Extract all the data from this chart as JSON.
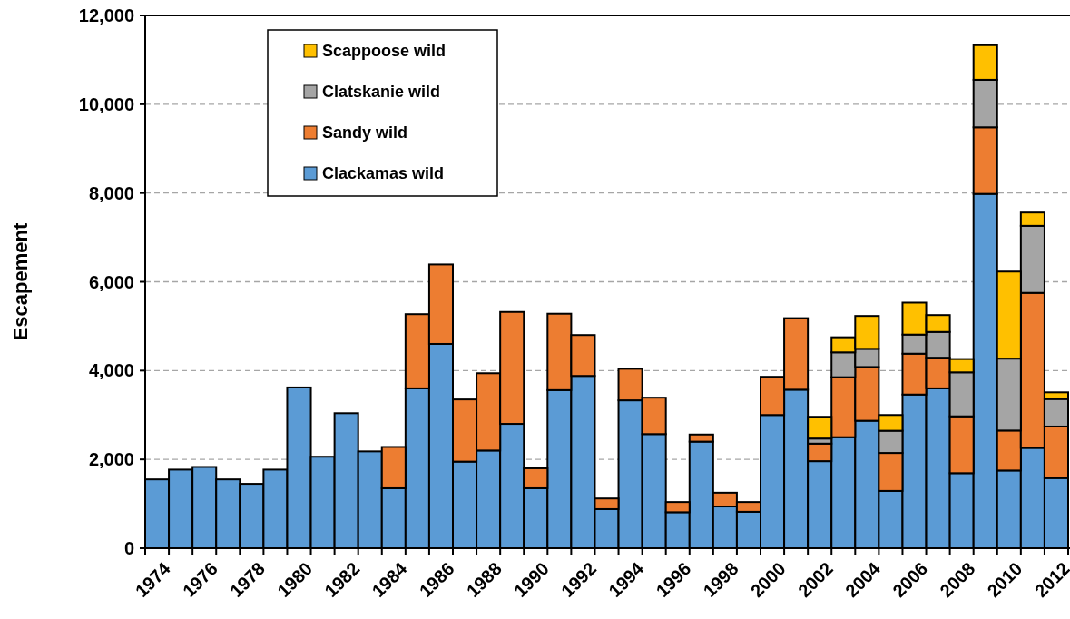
{
  "chart_data": {
    "type": "bar",
    "stacked": true,
    "ylabel": "Escapement",
    "categories": [
      "1974",
      null,
      "1976",
      null,
      "1978",
      null,
      "1980",
      null,
      "1982",
      null,
      "1984",
      null,
      "1986",
      null,
      "1988",
      null,
      "1990",
      null,
      "1992",
      null,
      "1994",
      null,
      "1996",
      null,
      "1998",
      null,
      "2000",
      null,
      "2002",
      null,
      "2004",
      null,
      "2006",
      null,
      "2008",
      null,
      "2010",
      null,
      "2012"
    ],
    "series": [
      {
        "name": "Clackamas wild",
        "color": "#5b9bd5",
        "values": [
          1550,
          1770,
          1830,
          1550,
          1450,
          1770,
          3620,
          2060,
          3040,
          2180,
          1350,
          3600,
          4600,
          1950,
          2200,
          2800,
          1350,
          3560,
          3880,
          880,
          3330,
          2570,
          810,
          2400,
          940,
          820,
          3000,
          3570,
          1960,
          2500,
          2870,
          1290,
          3460,
          3600,
          1690,
          7980,
          1750,
          2260,
          1580
        ]
      },
      {
        "name": "Sandy wild",
        "color": "#ed7d31",
        "values": [
          null,
          null,
          null,
          null,
          null,
          null,
          null,
          null,
          null,
          null,
          930,
          1670,
          1790,
          1400,
          1740,
          2520,
          450,
          1720,
          920,
          240,
          710,
          820,
          230,
          160,
          310,
          220,
          860,
          1610,
          395,
          1350,
          1210,
          855,
          920,
          690,
          1280,
          1500,
          900,
          3490,
          1160
        ]
      },
      {
        "name": "Clatskanie wild",
        "color": "#a5a5a5",
        "values": [
          null,
          null,
          null,
          null,
          null,
          null,
          null,
          null,
          null,
          null,
          null,
          null,
          null,
          null,
          null,
          null,
          null,
          null,
          null,
          null,
          null,
          null,
          null,
          null,
          null,
          null,
          null,
          null,
          115,
          560,
          410,
          500,
          430,
          580,
          990,
          1070,
          1620,
          1510,
          620
        ]
      },
      {
        "name": "Scappoose wild",
        "color": "#ffc000",
        "values": [
          null,
          null,
          null,
          null,
          null,
          null,
          null,
          null,
          null,
          null,
          null,
          null,
          null,
          null,
          null,
          null,
          null,
          null,
          null,
          null,
          null,
          null,
          null,
          null,
          null,
          null,
          null,
          null,
          490,
          340,
          740,
          355,
          720,
          380,
          300,
          780,
          1960,
          300,
          150
        ]
      }
    ],
    "ylim": [
      0,
      12000
    ],
    "yticks": [
      0,
      {
        "value": 2000,
        "label": "2,000"
      },
      {
        "value": 4000,
        "label": "4,000"
      },
      {
        "value": 6000,
        "label": "6,000"
      },
      {
        "value": 8000,
        "label": "8,000"
      },
      {
        "value": 10000,
        "label": "10,000"
      },
      {
        "value": 12000,
        "label": "12,000"
      }
    ],
    "grid": "y",
    "legend": "top left"
  }
}
